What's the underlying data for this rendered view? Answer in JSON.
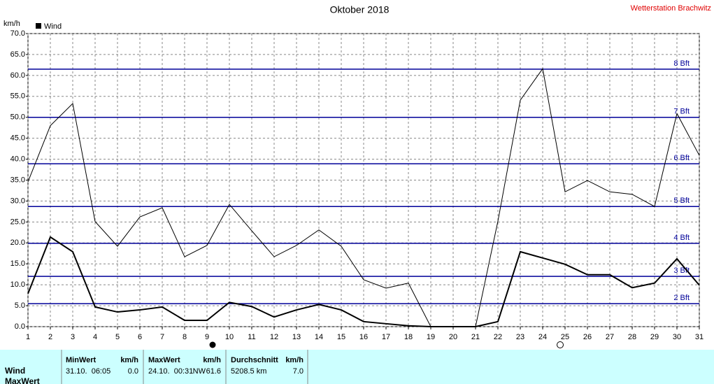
{
  "chart_data": {
    "type": "line",
    "title": "Oktober 2018",
    "station": "Wetterstation Brachwitz",
    "y_label": "km/h",
    "x": [
      1,
      2,
      3,
      4,
      5,
      6,
      7,
      8,
      9,
      10,
      11,
      12,
      13,
      14,
      15,
      16,
      17,
      18,
      19,
      20,
      21,
      22,
      23,
      24,
      25,
      26,
      27,
      28,
      29,
      30,
      31
    ],
    "xlim": [
      1,
      31
    ],
    "series": [
      {
        "name": "Wind",
        "color": "#000000",
        "width": 2,
        "values": [
          7.9,
          21.4,
          17.9,
          4.7,
          3.5,
          4.0,
          4.7,
          1.5,
          1.5,
          5.8,
          4.8,
          2.3,
          4.0,
          5.3,
          4.0,
          1.2,
          0.7,
          0.2,
          0,
          0,
          0,
          1.2,
          17.9,
          16.4,
          14.9,
          12.4,
          12.4,
          9.3,
          10.4,
          16.2,
          9.9
        ]
      },
      {
        "color": "#000000",
        "width": 1,
        "values": [
          34.6,
          48.0,
          53.3,
          25.1,
          19.2,
          26.2,
          28.4,
          16.7,
          19.4,
          29.2,
          22.9,
          16.7,
          19.4,
          23.1,
          19.2,
          11.2,
          9.2,
          10.4,
          0,
          0,
          0,
          25.2,
          54.1,
          61.6,
          32.2,
          34.9,
          32.2,
          31.6,
          28.7,
          50.9,
          40.9
        ]
      }
    ],
    "ylim": [
      0,
      70
    ],
    "yticks": [
      {
        "value": 0,
        "label": "0.0"
      },
      {
        "value": 5,
        "label": "5.0"
      },
      {
        "value": 10,
        "label": "10.0"
      },
      {
        "value": 15,
        "label": "15.0"
      },
      {
        "value": 20,
        "label": "20.0"
      },
      {
        "value": 25,
        "label": "25.0"
      },
      {
        "value": 30,
        "label": "30.0"
      },
      {
        "value": 35,
        "label": "35.0"
      },
      {
        "value": 40,
        "label": "40.0"
      },
      {
        "value": 45,
        "label": "45.0"
      },
      {
        "value": 50,
        "label": "50.0"
      },
      {
        "value": 55,
        "label": "55.0"
      },
      {
        "value": 60,
        "label": "60.0"
      },
      {
        "value": 65,
        "label": "65.0"
      },
      {
        "value": 70,
        "label": "70.0"
      }
    ],
    "reference_lines": [
      {
        "value": 5.5,
        "label": "2 Bft"
      },
      {
        "value": 12.0,
        "label": "3 Bft"
      },
      {
        "value": 19.9,
        "label": "4 Bft"
      },
      {
        "value": 28.7,
        "label": "5 Bft"
      },
      {
        "value": 38.9,
        "label": "6 Bft"
      },
      {
        "value": 50.0,
        "label": "7 Bft"
      },
      {
        "value": 61.5,
        "label": "8 Bft"
      }
    ],
    "reference_color": "#000099",
    "grid": true
  },
  "table": {
    "headers": [
      [
        "MinWert",
        "km/h"
      ],
      [
        "MaxWert",
        "km/h"
      ],
      [
        "Durchschnitt",
        "km/h"
      ]
    ],
    "rows": [
      {
        "label": "Wind",
        "cells": [
          "31.10.  06:05",
          "0.0",
          "24.10.  00:31",
          "NW",
          "61.6",
          "5208.5 km",
          "7.0"
        ]
      },
      {
        "label": "MaxWert"
      }
    ]
  }
}
